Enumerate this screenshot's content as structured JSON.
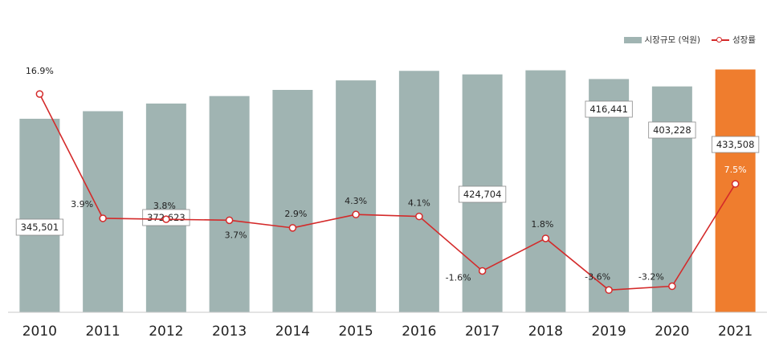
{
  "chart_data": {
    "type": "bar+line",
    "categories": [
      "2010",
      "2011",
      "2012",
      "2013",
      "2014",
      "2015",
      "2016",
      "2017",
      "2018",
      "2019",
      "2020",
      "2021"
    ],
    "series": [
      {
        "name": "시장규모 (억원)",
        "kind": "bar",
        "values": [
          345501,
          359000,
          372623,
          386000,
          397000,
          414000,
          431000,
          424704,
          432000,
          416441,
          403228,
          433508
        ],
        "labels": {
          "0": "345,501",
          "2": "372,623",
          "7": "424,704",
          "9": "416,441",
          "10": "403,228",
          "11": "433,508"
        },
        "color": "#a0b4b2",
        "highlight_color": "#ef7d2e",
        "highlight_index": 11
      },
      {
        "name": "성장률",
        "kind": "line",
        "values": [
          16.9,
          3.9,
          3.8,
          3.7,
          2.9,
          4.3,
          4.1,
          -1.6,
          1.8,
          -3.6,
          -3.2,
          7.5
        ],
        "labels": [
          "16.9%",
          "3.9%",
          "3.8%",
          "3.7%",
          "2.9%",
          "4.3%",
          "4.1%",
          "-1.6%",
          "1.8%",
          "-3.6%",
          "-3.2%",
          "7.5%"
        ],
        "color": "#d42a2a"
      }
    ],
    "bar_axis_ylim": [
      0,
      440000
    ],
    "line_axis_ylim": [
      -4.5,
      18
    ],
    "legend": [
      "시장규모 (억원)",
      "성장률"
    ],
    "legend_position": "top-right",
    "grid": false
  }
}
